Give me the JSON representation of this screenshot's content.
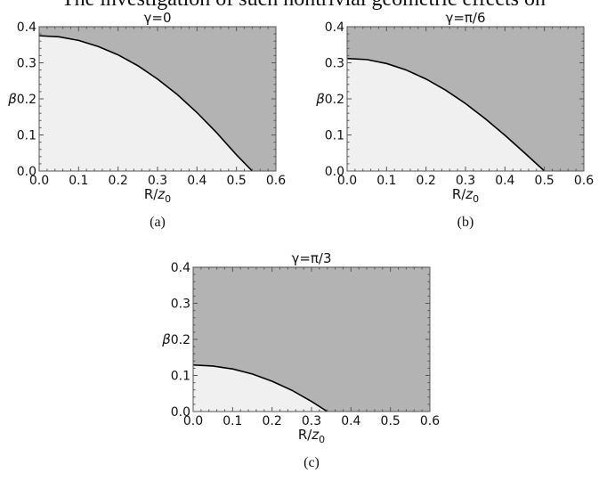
{
  "header_text": "The investigation of such nontrivial geometric effects on",
  "colors": {
    "allowed": "#f0f0f0",
    "forbidden": "#b3b3b3",
    "curve": "#000000",
    "frame": "#555555"
  },
  "chart_data": [
    {
      "type": "area",
      "title": "γ=0",
      "caption": "(a)",
      "xlabel": "R/z0",
      "ylabel": "β",
      "xlim": [
        0,
        0.6
      ],
      "ylim": [
        0,
        0.4
      ],
      "xticks": [
        "0.0",
        "0.1",
        "0.2",
        "0.3",
        "0.4",
        "0.5",
        "0.6"
      ],
      "yticks": [
        "0.0",
        "0.1",
        "0.2",
        "0.3",
        "0.4"
      ],
      "series": [
        {
          "x": [
            0,
            0.05,
            0.1,
            0.15,
            0.2,
            0.25,
            0.3,
            0.35,
            0.4,
            0.45,
            0.5,
            0.54
          ],
          "y": [
            0.375,
            0.372,
            0.362,
            0.345,
            0.322,
            0.292,
            0.255,
            0.212,
            0.162,
            0.106,
            0.045,
            0.0
          ]
        }
      ]
    },
    {
      "type": "area",
      "title": "γ=π/6",
      "caption": "(b)",
      "xlabel": "R/z0",
      "ylabel": "β",
      "xlim": [
        0,
        0.6
      ],
      "ylim": [
        0,
        0.4
      ],
      "xticks": [
        "0.0",
        "0.1",
        "0.2",
        "0.3",
        "0.4",
        "0.5",
        "0.6"
      ],
      "yticks": [
        "0.0",
        "0.1",
        "0.2",
        "0.3",
        "0.4"
      ],
      "series": [
        {
          "x": [
            0,
            0.05,
            0.1,
            0.15,
            0.2,
            0.25,
            0.3,
            0.35,
            0.4,
            0.45,
            0.5
          ],
          "y": [
            0.312,
            0.309,
            0.298,
            0.28,
            0.255,
            0.224,
            0.187,
            0.145,
            0.099,
            0.05,
            0.0
          ]
        }
      ]
    },
    {
      "type": "area",
      "title": "γ=π/3",
      "caption": "(c)",
      "xlabel": "R/z0",
      "ylabel": "β",
      "xlim": [
        0,
        0.6
      ],
      "ylim": [
        0,
        0.4
      ],
      "xticks": [
        "0.0",
        "0.1",
        "0.2",
        "0.3",
        "0.4",
        "0.5",
        "0.6"
      ],
      "yticks": [
        "0.0",
        "0.1",
        "0.2",
        "0.3",
        "0.4"
      ],
      "series": [
        {
          "x": [
            0,
            0.05,
            0.1,
            0.15,
            0.2,
            0.25,
            0.3,
            0.34
          ],
          "y": [
            0.129,
            0.126,
            0.118,
            0.104,
            0.084,
            0.059,
            0.028,
            0.0
          ]
        }
      ]
    }
  ]
}
